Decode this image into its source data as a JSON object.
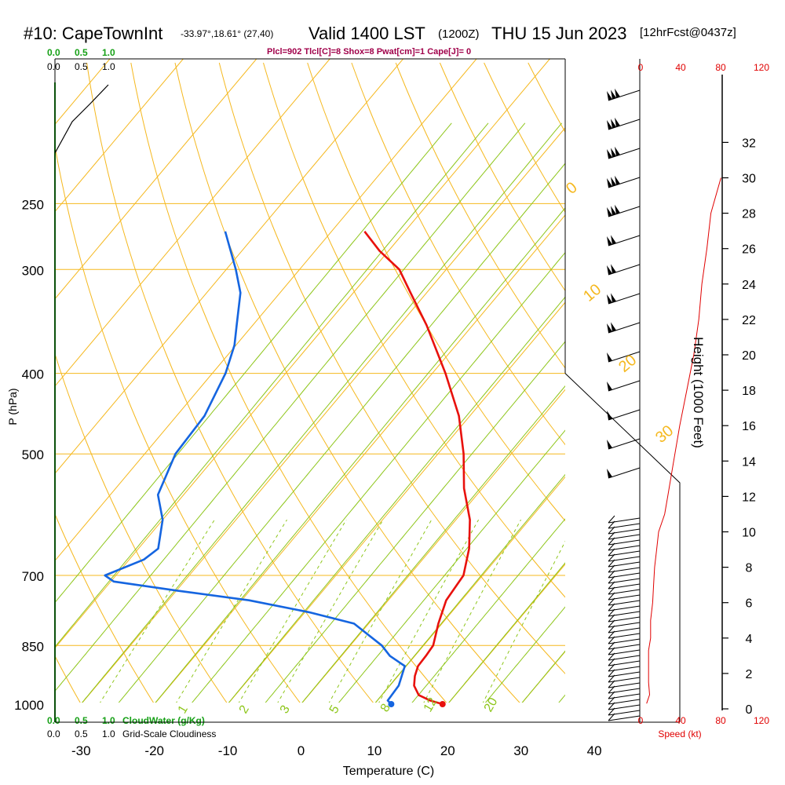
{
  "header": {
    "station": "#10: CapeTownInt",
    "coords": "-33.97°,18.61° (27,40)",
    "valid": "Valid 1400 LST",
    "utc": "(1200Z)",
    "date": "THU 15 Jun 2023",
    "forecast": "[12hrFcst@0437z]",
    "indices": "Plcl=902 Tlcl[C]=8 Shox=8 Pwat[cm]=1 Cape[J]= 0"
  },
  "colors": {
    "temperature": "#e8110d",
    "dewpoint": "#1565e0",
    "isotherm": "#f5b81e",
    "dry_adiabat": "#f5b81e",
    "moist_adiabat": "#8ec61b",
    "mixing_ratio": "#8ec61b",
    "cloud_water": "#16a016",
    "indices_text": "#a0004a",
    "speed": "#e00000"
  },
  "chart_data": {
    "type": "line",
    "subtype": "skew-T log-P sounding",
    "xlabel": "Temperature (C)",
    "ylabel": "P (hPa)",
    "right_label": "Height (1000 Feet)",
    "xlim": [
      -30,
      40
    ],
    "ylim_hpa": [
      1000,
      250
    ],
    "x_ticks": [
      "-30",
      "-20",
      "-10",
      "0",
      "10",
      "20",
      "30",
      "40"
    ],
    "pressure_ticks": [
      {
        "p": 250,
        "label": "250"
      },
      {
        "p": 300,
        "label": "300"
      },
      {
        "p": 400,
        "label": "400"
      },
      {
        "p": 500,
        "label": "500"
      },
      {
        "p": 700,
        "label": "700"
      },
      {
        "p": 850,
        "label": "850"
      },
      {
        "p": 1000,
        "label": "1000"
      }
    ],
    "height_ticks_kft": [
      "0",
      "2",
      "4",
      "6",
      "8",
      "10",
      "12",
      "14",
      "16",
      "18",
      "20",
      "22",
      "24",
      "26",
      "28",
      "30",
      "32"
    ],
    "mixing_ratio_labels": [
      "1",
      "2",
      "3",
      "5",
      "8",
      "12",
      "20"
    ],
    "moist_adiabat_labels": [
      "0",
      "10",
      "20",
      "30"
    ],
    "series": [
      {
        "name": "Temperature",
        "points": [
          {
            "p": 1000,
            "t": 19.3
          },
          {
            "p": 990,
            "t": 17.2
          },
          {
            "p": 975,
            "t": 15.0
          },
          {
            "p": 950,
            "t": 13.3
          },
          {
            "p": 925,
            "t": 12.3
          },
          {
            "p": 900,
            "t": 11.6
          },
          {
            "p": 875,
            "t": 11.5
          },
          {
            "p": 850,
            "t": 11.3
          },
          {
            "p": 800,
            "t": 9.5
          },
          {
            "p": 750,
            "t": 7.9
          },
          {
            "p": 700,
            "t": 7.4
          },
          {
            "p": 650,
            "t": 5.1
          },
          {
            "p": 600,
            "t": 1.9
          },
          {
            "p": 550,
            "t": -2.5
          },
          {
            "p": 500,
            "t": -6.5
          },
          {
            "p": 450,
            "t": -11.5
          },
          {
            "p": 400,
            "t": -18.2
          },
          {
            "p": 350,
            "t": -26.3
          },
          {
            "p": 320,
            "t": -32.2
          },
          {
            "p": 300,
            "t": -36.4
          },
          {
            "p": 285,
            "t": -41.2
          },
          {
            "p": 270,
            "t": -45.5
          }
        ]
      },
      {
        "name": "Dewpoint",
        "points": [
          {
            "p": 1000,
            "t": 12.3
          },
          {
            "p": 990,
            "t": 11.4
          },
          {
            "p": 950,
            "t": 11.2
          },
          {
            "p": 900,
            "t": 9.8
          },
          {
            "p": 875,
            "t": 6.6
          },
          {
            "p": 850,
            "t": 4.3
          },
          {
            "p": 800,
            "t": -2.0
          },
          {
            "p": 775,
            "t": -9.5
          },
          {
            "p": 750,
            "t": -19.0
          },
          {
            "p": 730,
            "t": -30.0
          },
          {
            "p": 712,
            "t": -39.6
          },
          {
            "p": 700,
            "t": -41.5
          },
          {
            "p": 670,
            "t": -38.0
          },
          {
            "p": 650,
            "t": -37.3
          },
          {
            "p": 600,
            "t": -40.0
          },
          {
            "p": 560,
            "t": -43.5
          },
          {
            "p": 500,
            "t": -45.8
          },
          {
            "p": 450,
            "t": -46.2
          },
          {
            "p": 400,
            "t": -48.2
          },
          {
            "p": 370,
            "t": -50.2
          },
          {
            "p": 350,
            "t": -52.2
          },
          {
            "p": 320,
            "t": -55.4
          },
          {
            "p": 300,
            "t": -58.7
          },
          {
            "p": 270,
            "t": -64.5
          }
        ]
      }
    ],
    "surface": {
      "p": 1000,
      "t": 19.3,
      "td": 12.3
    },
    "wind_profile": {
      "name": "Speed (kt)",
      "speed_ticks": [
        "0",
        "40",
        "80",
        "120"
      ],
      "points": [
        {
          "kft": 0.3,
          "kt": 6
        },
        {
          "kft": 0.8,
          "kt": 9
        },
        {
          "kft": 1.5,
          "kt": 8
        },
        {
          "kft": 2.5,
          "kt": 8
        },
        {
          "kft": 3.3,
          "kt": 8
        },
        {
          "kft": 4.0,
          "kt": 10
        },
        {
          "kft": 5.0,
          "kt": 10
        },
        {
          "kft": 6.0,
          "kt": 12
        },
        {
          "kft": 7.0,
          "kt": 13
        },
        {
          "kft": 8.0,
          "kt": 14
        },
        {
          "kft": 9.0,
          "kt": 16
        },
        {
          "kft": 10.0,
          "kt": 18
        },
        {
          "kft": 11.0,
          "kt": 24
        },
        {
          "kft": 12.0,
          "kt": 27
        },
        {
          "kft": 14.0,
          "kt": 33
        },
        {
          "kft": 16.0,
          "kt": 39
        },
        {
          "kft": 18.0,
          "kt": 46
        },
        {
          "kft": 20.0,
          "kt": 53
        },
        {
          "kft": 22.0,
          "kt": 58
        },
        {
          "kft": 24.0,
          "kt": 61
        },
        {
          "kft": 26.0,
          "kt": 66
        },
        {
          "kft": 28.0,
          "kt": 70
        },
        {
          "kft": 30.0,
          "kt": 80
        }
      ]
    },
    "cloud_water": {
      "label": "CloudWater (g/Kg)",
      "scale": [
        "0.0",
        "0.5",
        "1.0"
      ]
    },
    "cloudiness": {
      "label": "Grid-Scale Cloudiness",
      "scale": [
        "0.0",
        "0.5",
        "1.0"
      ]
    }
  }
}
